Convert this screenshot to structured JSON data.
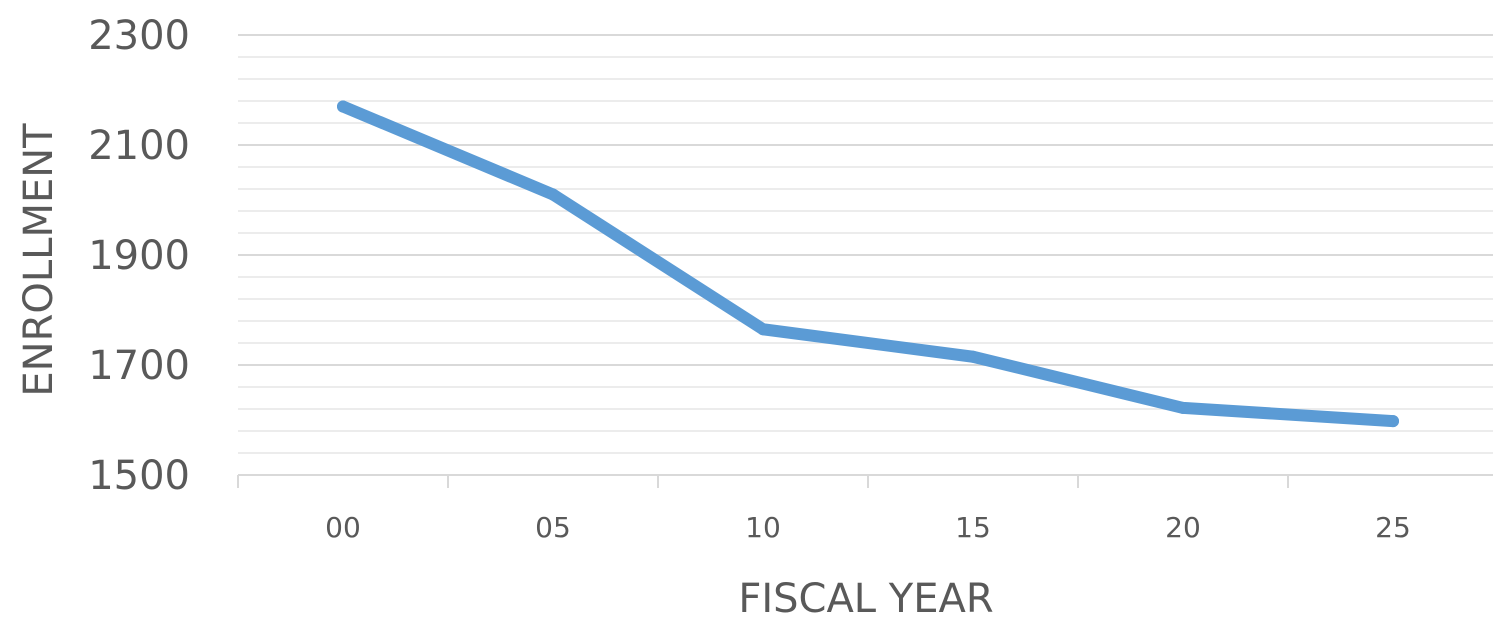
{
  "chart_data": {
    "type": "line",
    "title": "",
    "xlabel": "FISCAL YEAR",
    "ylabel": "ENROLLMENT",
    "categories": [
      "00",
      "05",
      "10",
      "15",
      "20",
      "25"
    ],
    "series": [
      {
        "values": [
          2170,
          2010,
          1765,
          1715,
          1622,
          1598
        ],
        "color": "#5b9bd5"
      }
    ],
    "ylim": [
      1500,
      2300
    ],
    "yticks": [
      "1500",
      "1700",
      "1900",
      "2100",
      "2300"
    ],
    "major_step": 200,
    "minor_step": 40,
    "grid": true,
    "legend": "none"
  }
}
